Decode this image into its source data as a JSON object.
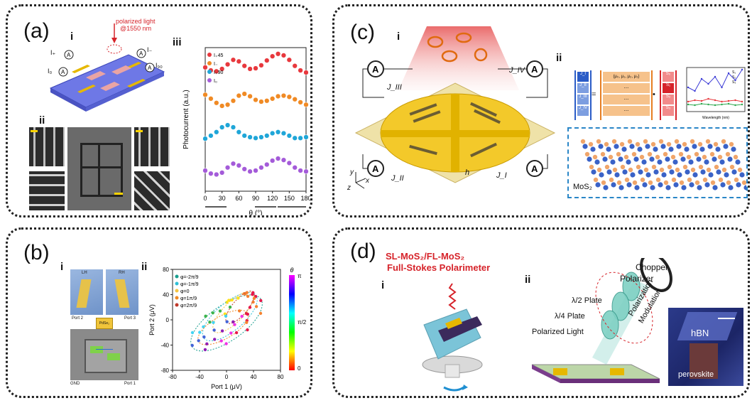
{
  "panels": {
    "a": {
      "label": "(a)",
      "sub_i": "i",
      "sub_ii": "ii",
      "sub_iii": "iii",
      "light": "polarized light",
      "wavelength": "@1550 nm",
      "currents": [
        "I₊",
        "I₀",
        "I₋",
        "I₉₀"
      ],
      "meter": "A"
    },
    "b": {
      "label": "(b)",
      "sub_i": "i",
      "sub_ii": "ii",
      "tag_top_left": "LH",
      "tag_top_right": "RH",
      "ports": [
        "Port 2",
        "Port 3",
        "GND",
        "Port 1"
      ],
      "chip": "PdSe₂"
    },
    "c": {
      "label": "(c)",
      "sub_i": "i",
      "sub_ii": "ii",
      "meter": "A",
      "currents": [
        "J_III",
        "J_IV",
        "J_II",
        "J_I"
      ],
      "height_label": "h",
      "material": "MoS₂",
      "axes": [
        "y",
        "z",
        "x"
      ],
      "vector_j": [
        "J_I",
        "J_II",
        "J_III",
        "J_IV"
      ],
      "matrix_row": "(μ₀, μ₁, μ₂, μ₃)",
      "dots": "...",
      "stokes": [
        "S₀",
        "S₁",
        "S₂",
        "S₃"
      ],
      "mini_xlabel": "Wavelength (nm)"
    },
    "d": {
      "label": "(d)",
      "sub_i": "i",
      "sub_ii": "ii",
      "title_line1": "SL-MoS₂/FL-MoS₂",
      "title_line2": "Full-Stokes Polarimeter",
      "chopper": "Chopper",
      "polarizer": "Polarizer",
      "half_plate": "λ/2 Plate",
      "quarter_plate": "λ/4 Plate",
      "polarized_light": "Polarized Light",
      "modulation_1": "Polarization",
      "modulation_2": "Modulation",
      "hbn": "hBN",
      "perovskite": "perovskite"
    }
  },
  "colors": {
    "substrate_blue": "#6e78e6",
    "gold": "#e6b800",
    "red": "#e8383d",
    "orange": "#f08a24",
    "cyan": "#1fa6d8",
    "purple": "#a45bd9"
  },
  "chart_data": [
    {
      "type": "scatter",
      "id": "panel-a-iii",
      "ylabel": "Photocurrent (a.u.)",
      "xlabel": "θ (°)",
      "x_ticks": [
        0,
        30,
        60,
        90,
        120,
        150,
        180
      ],
      "xlim": [
        0,
        180
      ],
      "series": [
        {
          "name": "I₊45",
          "color": "#e8383d",
          "offset": 3,
          "x": [
            0,
            10,
            20,
            30,
            40,
            50,
            60,
            70,
            80,
            90,
            100,
            110,
            120,
            130,
            140,
            150,
            160,
            170,
            180
          ],
          "values": [
            0.55,
            0.45,
            0.42,
            0.5,
            0.65,
            0.8,
            0.75,
            0.6,
            0.5,
            0.52,
            0.62,
            0.78,
            0.92,
            1.0,
            0.95,
            0.8,
            0.6,
            0.45,
            0.38
          ]
        },
        {
          "name": "I₋",
          "color": "#f08a24",
          "offset": 2,
          "x": [
            0,
            10,
            20,
            30,
            40,
            50,
            60,
            70,
            80,
            90,
            100,
            110,
            120,
            130,
            140,
            150,
            160,
            170,
            180
          ],
          "values": [
            0.75,
            0.62,
            0.48,
            0.38,
            0.42,
            0.55,
            0.72,
            0.78,
            0.7,
            0.58,
            0.52,
            0.55,
            0.62,
            0.7,
            0.72,
            0.68,
            0.6,
            0.5,
            0.42
          ]
        },
        {
          "name": "I₊90",
          "color": "#1fa6d8",
          "offset": 1,
          "x": [
            0,
            10,
            20,
            30,
            40,
            50,
            60,
            70,
            80,
            90,
            100,
            110,
            120,
            130,
            140,
            150,
            160,
            170,
            180
          ],
          "values": [
            0.4,
            0.5,
            0.62,
            0.78,
            0.85,
            0.78,
            0.62,
            0.5,
            0.45,
            0.42,
            0.45,
            0.5,
            0.58,
            0.62,
            0.58,
            0.5,
            0.42,
            0.42,
            0.45
          ]
        },
        {
          "name": "I₀",
          "color": "#a45bd9",
          "offset": 0,
          "x": [
            0,
            10,
            20,
            30,
            40,
            50,
            60,
            70,
            80,
            90,
            100,
            110,
            120,
            130,
            140,
            150,
            160,
            170,
            180
          ],
          "values": [
            0.45,
            0.35,
            0.32,
            0.38,
            0.55,
            0.68,
            0.62,
            0.5,
            0.42,
            0.45,
            0.55,
            0.65,
            0.78,
            0.85,
            0.8,
            0.7,
            0.55,
            0.45,
            0.42
          ]
        }
      ]
    },
    {
      "type": "scatter",
      "id": "panel-b-ii",
      "xlabel": "Port 1 (μV)",
      "ylabel": "Port 2 (μV)",
      "xlim": [
        -80,
        80
      ],
      "ylim": [
        -80,
        80
      ],
      "x_ticks": [
        -80,
        -40,
        0,
        40,
        80
      ],
      "y_ticks": [
        -80,
        -40,
        0,
        40,
        80
      ],
      "colorbar": {
        "label": "θ",
        "ticks": [
          "π",
          "π/2",
          "0"
        ]
      },
      "series": [
        {
          "name": "φ=-2π/9",
          "color": "#1a9e8f",
          "marker": "circle"
        },
        {
          "name": "φ=-1π/9",
          "color": "#2fbfd6",
          "marker": "diamond"
        },
        {
          "name": "φ=0",
          "color": "#f5c542",
          "marker": "circle"
        },
        {
          "name": "φ=1π/9",
          "color": "#f08a24",
          "marker": "triangle"
        },
        {
          "name": "φ=2π/9",
          "color": "#c0392b",
          "marker": "circle"
        }
      ],
      "ellipses": [
        {
          "cx": 0,
          "cy": -5,
          "rx": 62,
          "ry": 28,
          "angle": -35
        },
        {
          "cx": 5,
          "cy": 5,
          "rx": 50,
          "ry": 22,
          "angle": -40
        },
        {
          "cx": 10,
          "cy": 12,
          "rx": 40,
          "ry": 16,
          "angle": -45
        },
        {
          "cx": -5,
          "cy": -12,
          "rx": 42,
          "ry": 18,
          "angle": -30
        },
        {
          "cx": 20,
          "cy": 20,
          "rx": 30,
          "ry": 12,
          "angle": -50
        }
      ]
    },
    {
      "type": "line",
      "id": "panel-c-ii-mini",
      "xlabel": "Wavelength (nm)",
      "series_names": [
        "S₁",
        "S₂",
        "S₃"
      ],
      "series_colors": [
        "#e8383d",
        "#2fa84f",
        "#3a3ad6"
      ]
    }
  ]
}
